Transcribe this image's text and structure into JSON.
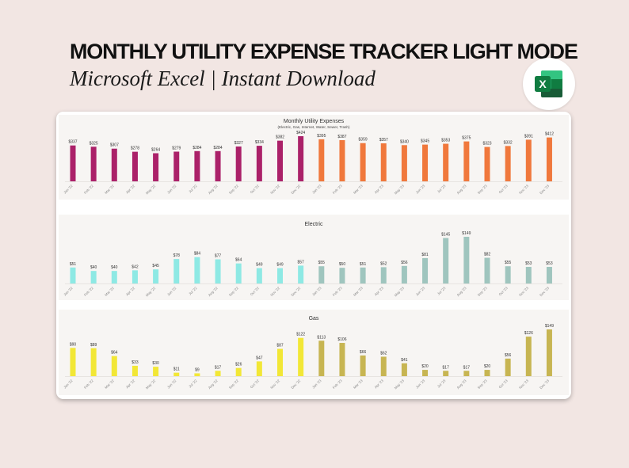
{
  "header": {
    "title": "MONTHLY UTILITY EXPENSE TRACKER LIGHT MODE",
    "subtitle": "Microsoft Excel | Instant Download"
  },
  "logo": {
    "icon": "excel-logo-icon",
    "letter": "X",
    "colors": [
      "#185c37",
      "#21a366",
      "#107c41",
      "#33c481"
    ]
  },
  "chart_data": [
    {
      "type": "bar",
      "title": "Monthly Utility Expenses",
      "subtitle": "(Electric, Gas, Internet, Water, Sewer, Trash)",
      "categories": [
        "Jan '22",
        "Feb '22",
        "Mar '22",
        "Apr '22",
        "May '22",
        "Jun '22",
        "Jul '22",
        "Aug '22",
        "Sep '22",
        "Oct '22",
        "Nov '22",
        "Dec '22",
        "Jan '23",
        "Feb '23",
        "Mar '23",
        "Apr '23",
        "May '23",
        "Jun '23",
        "Jul '23",
        "Aug '23",
        "Sep '23",
        "Oct '23",
        "Nov '23",
        "Dec '23"
      ],
      "values": [
        337,
        325,
        307,
        278,
        264,
        279,
        284,
        284,
        327,
        334,
        382,
        424,
        395,
        387,
        359,
        357,
        340,
        345,
        353,
        375,
        323,
        332,
        391,
        412
      ],
      "labels": [
        "$337",
        "$325",
        "$307",
        "$278",
        "$264",
        "$279",
        "$284",
        "$284",
        "$327",
        "$334",
        "$382",
        "$424",
        "$395",
        "$387",
        "$359",
        "$357",
        "$340",
        "$345",
        "$353",
        "$375",
        "$323",
        "$332",
        "$391",
        "$412"
      ],
      "colors": [
        "#ab2169",
        "#ab2169",
        "#ab2169",
        "#ab2169",
        "#ab2169",
        "#ab2169",
        "#ab2169",
        "#ab2169",
        "#ab2169",
        "#ab2169",
        "#ab2169",
        "#ab2169",
        "#f0783c",
        "#f0783c",
        "#f0783c",
        "#f0783c",
        "#f0783c",
        "#f0783c",
        "#f0783c",
        "#f0783c",
        "#f0783c",
        "#f0783c",
        "#f0783c",
        "#f0783c"
      ],
      "ylim": [
        0,
        424
      ],
      "grid": false,
      "legend": "none"
    },
    {
      "type": "bar",
      "title": "Electric",
      "subtitle": "",
      "categories": [
        "Jan '22",
        "Feb '22",
        "Mar '22",
        "Apr '22",
        "May '22",
        "Jun '22",
        "Jul '22",
        "Aug '22",
        "Sep '22",
        "Oct '22",
        "Nov '22",
        "Dec '22",
        "Jan '23",
        "Feb '23",
        "Mar '23",
        "Apr '23",
        "May '23",
        "Jun '23",
        "Jul '23",
        "Aug '23",
        "Sep '23",
        "Oct '23",
        "Nov '23",
        "Dec '23"
      ],
      "values": [
        51,
        40,
        40,
        42,
        45,
        78,
        84,
        77,
        64,
        49,
        49,
        57,
        55,
        50,
        51,
        52,
        56,
        81,
        145,
        149,
        82,
        55,
        53,
        53
      ],
      "labels": [
        "$51",
        "$40",
        "$40",
        "$42",
        "$45",
        "$78",
        "$84",
        "$77",
        "$64",
        "$49",
        "$49",
        "$57",
        "$55",
        "$50",
        "$51",
        "$52",
        "$56",
        "$81",
        "$145",
        "$149",
        "$82",
        "$55",
        "$53",
        "$53"
      ],
      "colors": [
        "#8ee9e4",
        "#8ee9e4",
        "#8ee9e4",
        "#8ee9e4",
        "#8ee9e4",
        "#8ee9e4",
        "#8ee9e4",
        "#8ee9e4",
        "#8ee9e4",
        "#8ee9e4",
        "#8ee9e4",
        "#8ee9e4",
        "#9fc5be",
        "#9fc5be",
        "#9fc5be",
        "#9fc5be",
        "#9fc5be",
        "#9fc5be",
        "#9fc5be",
        "#9fc5be",
        "#9fc5be",
        "#9fc5be",
        "#9fc5be",
        "#9fc5be"
      ],
      "ylim": [
        0,
        149
      ],
      "grid": false,
      "legend": "none"
    },
    {
      "type": "bar",
      "title": "Gas",
      "subtitle": "",
      "categories": [
        "Jan '22",
        "Feb '22",
        "Mar '22",
        "Apr '22",
        "May '22",
        "Jun '22",
        "Jul '22",
        "Aug '22",
        "Sep '22",
        "Oct '22",
        "Nov '22",
        "Dec '22",
        "Jan '23",
        "Feb '23",
        "Mar '23",
        "Apr '23",
        "May '23",
        "Jun '23",
        "Jul '23",
        "Aug '23",
        "Sep '23",
        "Oct '23",
        "Nov '23",
        "Dec '23"
      ],
      "values": [
        90,
        89,
        64,
        33,
        30,
        11,
        9,
        17,
        26,
        47,
        87,
        122,
        113,
        106,
        66,
        62,
        41,
        20,
        17,
        17,
        20,
        56,
        126,
        149
      ],
      "labels": [
        "$90",
        "$89",
        "$64",
        "$33",
        "$30",
        "$11",
        "$9",
        "$17",
        "$26",
        "$47",
        "$87",
        "$122",
        "$113",
        "$106",
        "$66",
        "$62",
        "$41",
        "$20",
        "$17",
        "$17",
        "$20",
        "$56",
        "$126",
        "$149"
      ],
      "colors": [
        "#f2e736",
        "#f2e736",
        "#f2e736",
        "#f2e736",
        "#f2e736",
        "#f2e736",
        "#f2e736",
        "#f2e736",
        "#f2e736",
        "#f2e736",
        "#f2e736",
        "#f2e736",
        "#c7b552",
        "#c7b552",
        "#c7b552",
        "#c7b552",
        "#c7b552",
        "#c7b552",
        "#c7b552",
        "#c7b552",
        "#c7b552",
        "#c7b552",
        "#c7b552",
        "#c7b552"
      ],
      "ylim": [
        0,
        149
      ],
      "grid": false,
      "legend": "none"
    }
  ]
}
